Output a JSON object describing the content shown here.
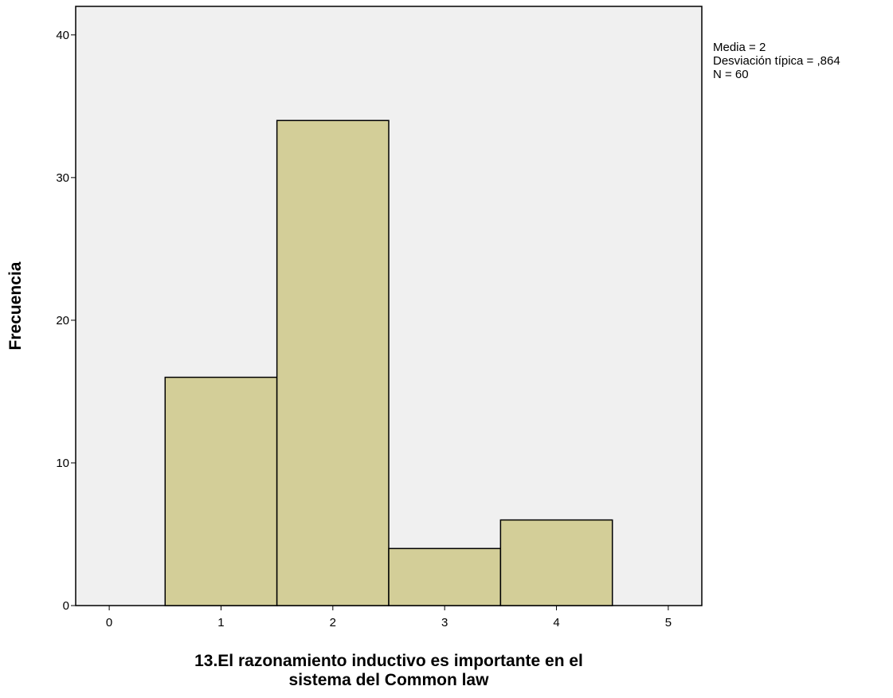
{
  "chart_data": {
    "type": "bar",
    "bins": [
      {
        "x_start": 0.5,
        "x_end": 1.5,
        "value": 16
      },
      {
        "x_start": 1.5,
        "x_end": 2.5,
        "value": 34
      },
      {
        "x_start": 2.5,
        "x_end": 3.5,
        "value": 4
      },
      {
        "x_start": 3.5,
        "x_end": 4.5,
        "value": 6
      }
    ],
    "xlim": [
      -0.3,
      5.3
    ],
    "ylim": [
      0,
      42
    ],
    "x_ticks": [
      "0",
      "1",
      "2",
      "3",
      "4",
      "5"
    ],
    "y_ticks": [
      "0",
      "10",
      "20",
      "30",
      "40"
    ],
    "x_tick_values": [
      0,
      1,
      2,
      3,
      4,
      5
    ],
    "y_tick_values": [
      0,
      10,
      20,
      30,
      40
    ],
    "xlabel_lines": [
      "13.El razonamiento inductivo es importante en el",
      "sistema del Common law"
    ],
    "ylabel": "Frecuencia",
    "stats": [
      "Media = 2",
      "Desviación típica = ,864",
      "N = 60"
    ],
    "grid": false,
    "colors": {
      "bar_fill": "#d3ce98",
      "bar_stroke": "#000000",
      "plot_background": "#f0f0f0"
    }
  }
}
